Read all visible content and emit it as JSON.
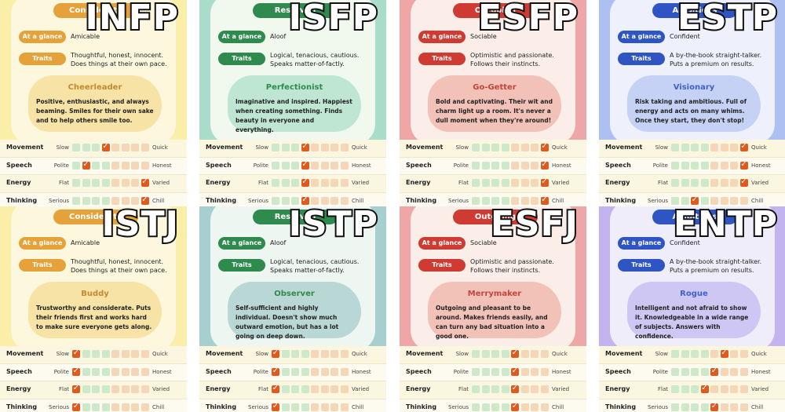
{
  "axis_labels": {
    "movement": {
      "label": "Movement",
      "low": "Slow",
      "high": "Quick"
    },
    "speech": {
      "label": "Speech",
      "low": "Polite",
      "high": "Honest"
    },
    "energy": {
      "label": "Energy",
      "low": "Flat",
      "high": "Varied"
    },
    "thinking": {
      "label": "Thinking",
      "low": "Serious",
      "high": "Chill"
    }
  },
  "pill_labels": {
    "glance": "At a glance",
    "traits": "Traits"
  },
  "cards": [
    {
      "mbti": "INFP",
      "badge": "Considerate",
      "theme": {
        "bg": "#fbeea8",
        "inner": "#fdf8dd",
        "accent": "#e5a23a",
        "blob": "#f7e3a5",
        "nick": "#c18a34"
      },
      "glance": "Amicable",
      "traits": "Thoughtful, honest, innocent. Does things at their own pace.",
      "nickname": "Cheerleader",
      "description": "Positive, enthusiastic, and always beaming. Smiles for their own sake and to help others smile too.",
      "scales": {
        "movement": 4,
        "speech": 2,
        "energy": 8,
        "thinking": 8
      }
    },
    {
      "mbti": "ISFP",
      "badge": "Reserved",
      "theme": {
        "bg": "#a9ddc9",
        "inner": "#f1f9ee",
        "accent": "#2f8a4e",
        "blob": "#bfe6d3",
        "nick": "#2f8a4e"
      },
      "glance": "Aloof",
      "traits": "Logical, tenacious, cautious. Speaks matter-of-factly.",
      "nickname": "Perfectionist",
      "description": "Imaginative and inspired. Happiest when creating something. Finds beauty in everyone and everything.",
      "scales": {
        "movement": 4,
        "speech": 4,
        "energy": 4,
        "thinking": 4
      }
    },
    {
      "mbti": "ESFP",
      "badge": "Outgoing",
      "theme": {
        "bg": "#efa6a6",
        "inner": "#fbeee8",
        "accent": "#cf3a32",
        "blob": "#f2c2b8",
        "nick": "#c9433a"
      },
      "glance": "Sociable",
      "traits": "Optimistic and passionate. Follows their instincts.",
      "nickname": "Go-Getter",
      "description": "Bold and captivating. Their wit and charm light up a room. It's never a dull moment when they're around!",
      "scales": {
        "movement": 8,
        "speech": 8,
        "energy": 8,
        "thinking": 8
      }
    },
    {
      "mbti": "ESTP",
      "badge": "Ambitious",
      "theme": {
        "bg": "#aebff2",
        "inner": "#eef1fb",
        "accent": "#2f55c4",
        "blob": "#c6d2f5",
        "nick": "#3e62c8"
      },
      "glance": "Confident",
      "traits": "A by-the-book straight-talker. Puts a premium on results.",
      "nickname": "Visionary",
      "description": "Risk taking and ambitious. Full of energy and acts on many whims. Once they start, they don't stop!",
      "scales": {
        "movement": 8,
        "speech": 8,
        "energy": 8,
        "thinking": 3
      }
    },
    {
      "mbti": "ISTJ",
      "badge": "Considerate",
      "theme": {
        "bg": "#fbeea8",
        "inner": "#fdf8dd",
        "accent": "#e5a23a",
        "blob": "#f7e3a5",
        "nick": "#c18a34"
      },
      "glance": "Amicable",
      "traits": "Thoughtful, honest, innocent. Does things at their own pace.",
      "nickname": "Buddy",
      "description": "Trustworthy and considerate. Puts their friends first and works hard to make sure everyone gets along.",
      "scales": {
        "movement": 1,
        "speech": 1,
        "energy": 1,
        "thinking": 1
      }
    },
    {
      "mbti": "ISTP",
      "badge": "Reserved",
      "theme": {
        "bg": "#a8cfcf",
        "inner": "#eef6f2",
        "accent": "#2f8a4e",
        "blob": "#b9d7d4",
        "nick": "#2f8a4e"
      },
      "glance": "Aloof",
      "traits": "Logical, tenacious, cautious. Speaks matter-of-factly.",
      "nickname": "Observer",
      "description": "Self-sufficient and highly individual. Doesn't show much outward emotion, but has a lot going on deep down.",
      "scales": {
        "movement": 1,
        "speech": 1,
        "energy": 1,
        "thinking": 1
      }
    },
    {
      "mbti": "ESFJ",
      "badge": "Outgoing",
      "theme": {
        "bg": "#efa6a6",
        "inner": "#fbeee8",
        "accent": "#cf3a32",
        "blob": "#f2c2b8",
        "nick": "#c9433a"
      },
      "glance": "Sociable",
      "traits": "Optimistic and passionate. Follows their instincts.",
      "nickname": "Merrymaker",
      "description": "Outgoing and pleasant to be around. Makes friends easily, and can turn any bad situation into a good one.",
      "scales": {
        "movement": 5,
        "speech": 5,
        "energy": 5,
        "thinking": 5
      }
    },
    {
      "mbti": "ENTP",
      "badge": "Ambitious",
      "theme": {
        "bg": "#c3b3ef",
        "inner": "#f0edfb",
        "accent": "#2f55c4",
        "blob": "#cfc7f3",
        "nick": "#3e62c8"
      },
      "glance": "Confident",
      "traits": "A by-the-book straight-talker. Puts a premium on results.",
      "nickname": "Rogue",
      "description": "Intelligent and not afraid to show it. Knowledgeable in a wide range of subjects. Answers with confidence.",
      "scales": {
        "movement": 6,
        "speech": 5,
        "energy": 4,
        "thinking": 5
      }
    }
  ]
}
